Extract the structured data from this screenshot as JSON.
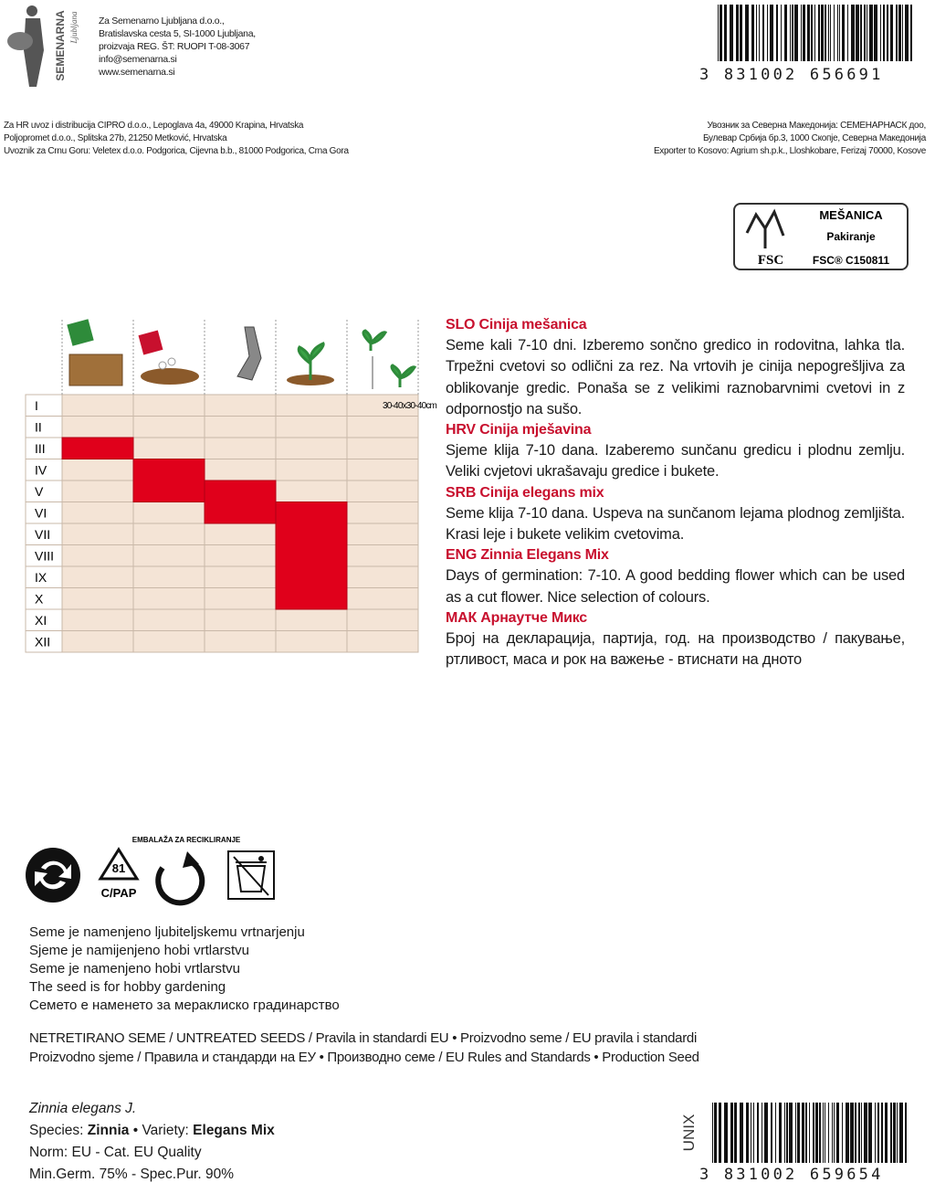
{
  "header": {
    "brand": "SEMENARNA",
    "brand_sub": "Ljubljana",
    "address": [
      "Za Semenarno Ljubljana d.o.o.,",
      "Bratislavska cesta 5, SI-1000 Ljubljana,",
      "proizvaja REG. ŠT: RUOPI T-08-3067",
      "info@semenarna.si",
      "www.semenarna.si"
    ]
  },
  "barcode_top": "3 831002 656691",
  "distributors_left": [
    "Za HR uvoz i distribucija CIPRO d.o.o., Lepoglava 4a, 49000 Krapina, Hrvatska",
    "Poljopromet d.o.o., Splitska 27b, 21250 Metković, Hrvatska",
    "Uvoznik za Crnu Goru: Veletex d.o.o. Podgorica, Cijevna b.b., 81000 Podgorica, Crna Gora"
  ],
  "distributors_right": [
    "Увозник за Северна Македонија: СЕМЕНАРНАСК доо,",
    "Булевар Србија бр.3, 1000 Скопје, Северна Македонија",
    "Exporter to Kosovo: Agrium sh.p.k., Lloshkobare, Ferizaj 70000, Kosove"
  ],
  "fsc": {
    "logo": "FSC",
    "title": "MEŠANICA",
    "sub": "Pakiranje",
    "code": "FSC® C150811"
  },
  "calendar": {
    "months": [
      "I",
      "II",
      "III",
      "IV",
      "V",
      "VI",
      "VII",
      "VIII",
      "IX",
      "X",
      "XI",
      "XII"
    ],
    "spacing": "30-40x30-40cm"
  },
  "descriptions": [
    {
      "heading": "SLO Cinija mešanica",
      "text": "Seme kali 7-10 dni. Izberemo sončno gredico in rodovitna, lahka tla. Trpežni cvetovi so odlični za rez. Na vrtovih je cinija nepogrešljiva za oblikovanje gredic. Ponaša se z velikimi raznobarvnimi cvetovi in z odpornostjo na sušo."
    },
    {
      "heading": "HRV Cinija mješavina",
      "text": "Sjeme klija 7-10 dana. Izaberemo sunčanu gredicu i plodnu zemlju. Veliki cvjetovi ukrašavaju gredice i bukete."
    },
    {
      "heading": "SRB Cinija elegans mix",
      "text": "Seme klija 7-10 dana. Uspeva na sunčanom lejama plodnog zemljišta. Krasi leje i bukete velikim cvetovima."
    },
    {
      "heading": "ENG Zinnia Elegans Mix",
      "text": "Days of germination: 7-10. A good bedding flower which can be used as a cut flower. Nice selection of colours."
    },
    {
      "heading": "МАК Арнаутче Микс",
      "text": "Број на декларација, партија, год. на производство / пакување, ртливост, маса и рок на важење - втиснати на дното"
    }
  ],
  "recycling": {
    "packaging_label": "EMBALAŽA ZA RECIKLIRANJE",
    "code": "81",
    "material": "C/PAP"
  },
  "notes": [
    "Seme je namenjeno ljubiteljskemu vrtnarjenju",
    "Sjeme je namijenjeno hobi vrtlarstvu",
    "Seme je namenjeno hobi vrtlarstvu",
    "The seed is for hobby gardening",
    "Семето е наменето за мераклиско градинарство"
  ],
  "standards": [
    "NETRETIRANO SEME / UNTREATED SEEDS / Pravila in standardi EU • Proizvodno seme / EU pravila i standardi",
    "Proizvodno sjeme / Правила и стандарди на ЕУ • Производно семе / EU Rules and Standards • Production Seed"
  ],
  "species": {
    "latin": "Zinnia elegans J.",
    "species_label": "Species:",
    "species_value": "Zinnia",
    "variety_label": "• Variety:",
    "variety_value": "Elegans Mix",
    "norm": "Norm: EU - Cat. EU Quality",
    "germination": "Min.Germ. 75% - Spec.Pur. 90%"
  },
  "barcode_bottom": "3 831002 659654",
  "brand_code": "UNIX"
}
